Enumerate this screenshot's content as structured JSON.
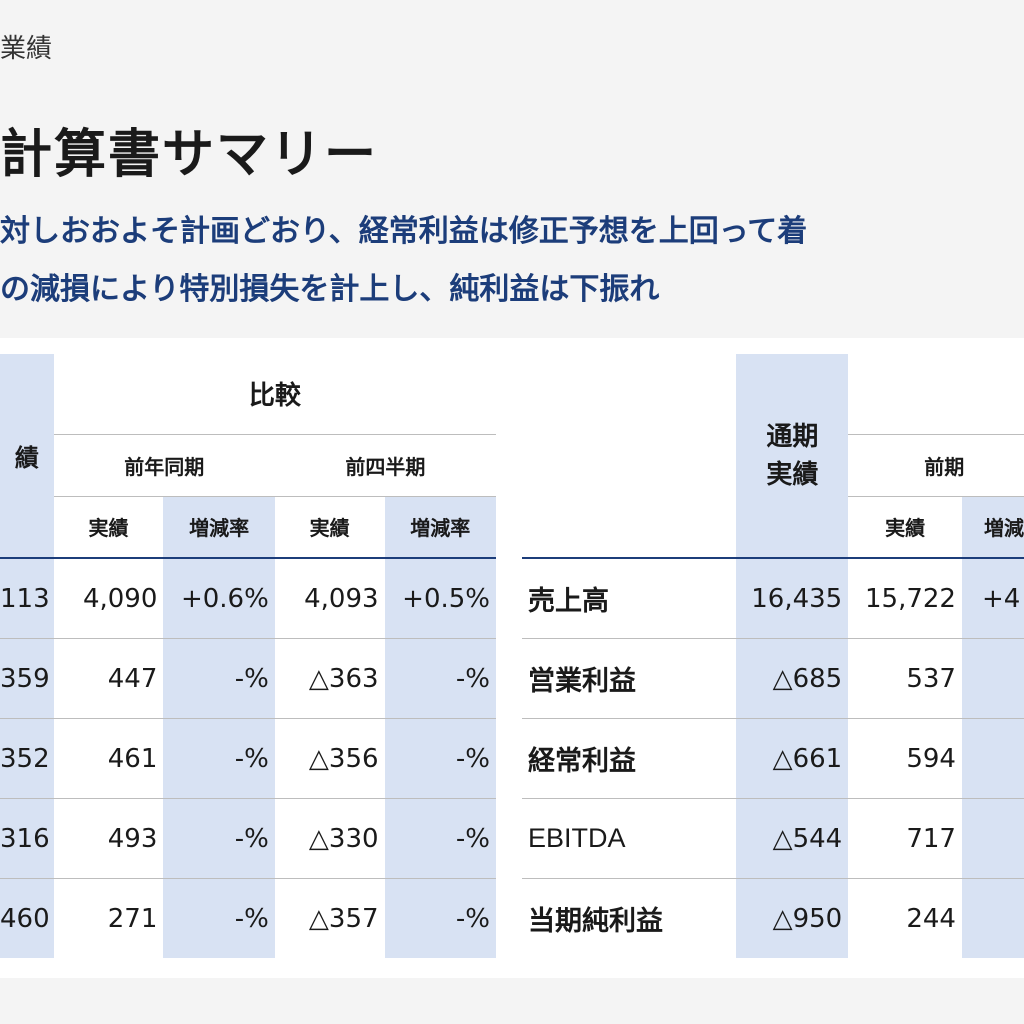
{
  "header": {
    "section": "業績",
    "title": "計算書サマリー",
    "lead_line1": "対しおおよそ計画どおり、経常利益は修正予想を上回って着",
    "lead_line2": "の減損により特別損失を計上し、純利益は下振れ"
  },
  "left_table": {
    "col_actual_fragment": "績",
    "compare_header": "比較",
    "group_prev_year": "前年同期",
    "group_prev_quarter": "前四半期",
    "sub_actual": "実績",
    "sub_rate": "増減率",
    "rows": [
      {
        "current": "113",
        "py_actual": "4,090",
        "py_rate": "+0.6%",
        "pq_actual": "4,093",
        "pq_rate": "+0.5%"
      },
      {
        "current": "359",
        "py_actual": "447",
        "py_rate": "-%",
        "pq_actual": "△363",
        "pq_rate": "-%"
      },
      {
        "current": "352",
        "py_actual": "461",
        "py_rate": "-%",
        "pq_actual": "△356",
        "pq_rate": "-%"
      },
      {
        "current": "316",
        "py_actual": "493",
        "py_rate": "-%",
        "pq_actual": "△330",
        "pq_rate": "-%"
      },
      {
        "current": "460",
        "py_actual": "271",
        "py_rate": "-%",
        "pq_actual": "△357",
        "pq_rate": "-%"
      }
    ]
  },
  "right_table": {
    "col_full_year_line1": "通期",
    "col_full_year_line2": "実績",
    "group_prev_period": "前期",
    "sub_actual": "実績",
    "sub_rate_fragment": "増減",
    "rows": [
      {
        "label": "売上高",
        "full_year": "16,435",
        "prev_actual": "15,722",
        "prev_rate": "+4"
      },
      {
        "label": "営業利益",
        "full_year": "△685",
        "prev_actual": "537",
        "prev_rate": ""
      },
      {
        "label": "経常利益",
        "full_year": "△661",
        "prev_actual": "594",
        "prev_rate": ""
      },
      {
        "label": "EBITDA",
        "full_year": "△544",
        "prev_actual": "717",
        "prev_rate": ""
      },
      {
        "label": "当期純利益",
        "full_year": "△950",
        "prev_actual": "244",
        "prev_rate": ""
      }
    ]
  },
  "colors": {
    "accent_navy": "#1c3d7a",
    "highlight_column": "#d8e2f3"
  }
}
